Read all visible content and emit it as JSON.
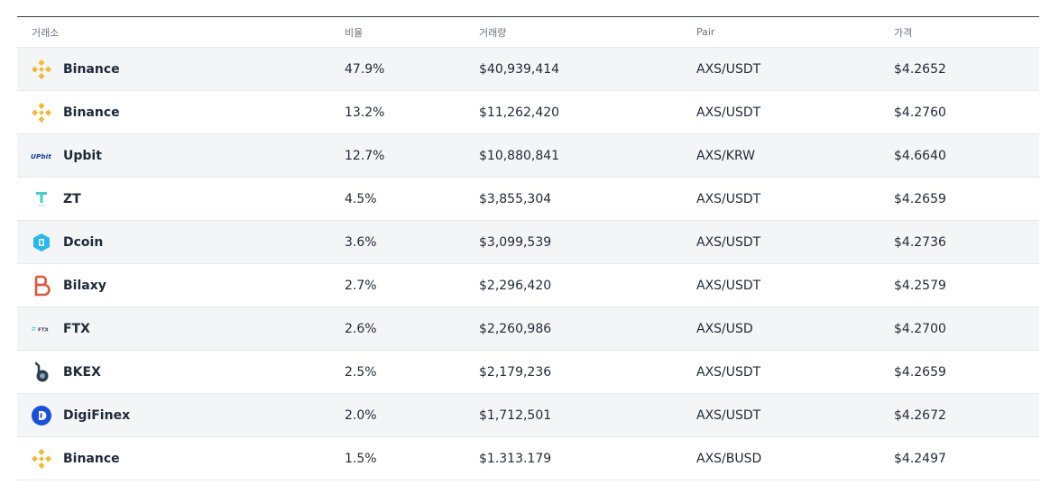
{
  "headers": {
    "exchange": "거래소",
    "share": "비율",
    "volume": "거래량",
    "pair": "Pair",
    "price": "가격"
  },
  "rows": [
    {
      "exchange": "Binance",
      "logo": "binance-icon",
      "share": "47.9%",
      "volume": "$40,939,414",
      "pair": "AXS/USDT",
      "price": "$4.2652"
    },
    {
      "exchange": "Binance",
      "logo": "binance-icon",
      "share": "13.2%",
      "volume": "$11,262,420",
      "pair": "AXS/USDT",
      "price": "$4.2760"
    },
    {
      "exchange": "Upbit",
      "logo": "upbit-icon",
      "logo_text": "UPbit",
      "share": "12.7%",
      "volume": "$10,880,841",
      "pair": "AXS/KRW",
      "price": "$4.6640"
    },
    {
      "exchange": "ZT",
      "logo": "zt-icon",
      "share": "4.5%",
      "volume": "$3,855,304",
      "pair": "AXS/USDT",
      "price": "$4.2659"
    },
    {
      "exchange": "Dcoin",
      "logo": "dcoin-icon",
      "share": "3.6%",
      "volume": "$3,099,539",
      "pair": "AXS/USDT",
      "price": "$4.2736"
    },
    {
      "exchange": "Bilaxy",
      "logo": "bilaxy-icon",
      "share": "2.7%",
      "volume": "$2,296,420",
      "pair": "AXS/USDT",
      "price": "$4.2579"
    },
    {
      "exchange": "FTX",
      "logo": "ftx-icon",
      "logo_text": "FTX",
      "share": "2.6%",
      "volume": "$2,260,986",
      "pair": "AXS/USD",
      "price": "$4.2700"
    },
    {
      "exchange": "BKEX",
      "logo": "bkex-icon",
      "share": "2.5%",
      "volume": "$2,179,236",
      "pair": "AXS/USDT",
      "price": "$4.2659"
    },
    {
      "exchange": "DigiFinex",
      "logo": "digifinex-icon",
      "share": "2.0%",
      "volume": "$1,712,501",
      "pair": "AXS/USDT",
      "price": "$4.2672"
    },
    {
      "exchange": "Binance",
      "logo": "binance-icon",
      "share": "1.5%",
      "volume": "$1.313.179",
      "pair": "AXS/BUSD",
      "price": "$4.2497"
    }
  ],
  "colors": {
    "binance": "#f3ba2f",
    "upbit": "#0a39b0",
    "zt": "#3fd3c7",
    "dcoin": "#27b8f0",
    "bilaxy": "#e0573c",
    "ftx": "#5fd0e6",
    "bkex": "#2c3e50",
    "digifinex": "#1b4fe0"
  }
}
